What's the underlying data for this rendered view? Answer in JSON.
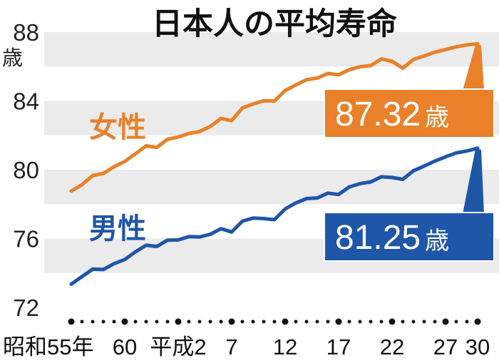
{
  "chart_data": {
    "type": "line",
    "title": "日本人の平均寿命",
    "y_unit": "歳",
    "ylim": [
      72,
      88
    ],
    "yticks": [
      72,
      76,
      80,
      84,
      88
    ],
    "x_range": [
      1980,
      2018
    ],
    "x_ticks": [
      {
        "year": 1980,
        "label": "昭和55年"
      },
      {
        "year": 1985,
        "label": "60"
      },
      {
        "year": 1990,
        "label": "平成2"
      },
      {
        "year": 1995,
        "label": "7"
      },
      {
        "year": 2000,
        "label": "12"
      },
      {
        "year": 2005,
        "label": "17"
      },
      {
        "year": 2010,
        "label": "22"
      },
      {
        "year": 2015,
        "label": "27"
      },
      {
        "year": 2018,
        "label": "30"
      }
    ],
    "grid_bands": true,
    "series": [
      {
        "name": "女性",
        "color": "#e8812a",
        "latest_label": "87.32",
        "unit": "歳",
        "points": [
          [
            1980,
            78.76
          ],
          [
            1981,
            79.13
          ],
          [
            1982,
            79.66
          ],
          [
            1983,
            79.78
          ],
          [
            1984,
            80.18
          ],
          [
            1985,
            80.48
          ],
          [
            1986,
            80.93
          ],
          [
            1987,
            81.39
          ],
          [
            1988,
            81.3
          ],
          [
            1989,
            81.77
          ],
          [
            1990,
            81.9
          ],
          [
            1991,
            82.11
          ],
          [
            1992,
            82.22
          ],
          [
            1993,
            82.51
          ],
          [
            1994,
            82.98
          ],
          [
            1995,
            82.85
          ],
          [
            1996,
            83.59
          ],
          [
            1997,
            83.82
          ],
          [
            1998,
            84.01
          ],
          [
            1999,
            83.99
          ],
          [
            2000,
            84.6
          ],
          [
            2001,
            84.93
          ],
          [
            2002,
            85.23
          ],
          [
            2003,
            85.33
          ],
          [
            2004,
            85.59
          ],
          [
            2005,
            85.52
          ],
          [
            2006,
            85.81
          ],
          [
            2007,
            85.99
          ],
          [
            2008,
            86.05
          ],
          [
            2009,
            86.44
          ],
          [
            2010,
            86.3
          ],
          [
            2011,
            85.9
          ],
          [
            2012,
            86.41
          ],
          [
            2013,
            86.61
          ],
          [
            2014,
            86.83
          ],
          [
            2015,
            86.99
          ],
          [
            2016,
            87.14
          ],
          [
            2017,
            87.26
          ],
          [
            2018,
            87.32
          ]
        ]
      },
      {
        "name": "男性",
        "color": "#1f56a8",
        "latest_label": "81.25",
        "unit": "歳",
        "points": [
          [
            1980,
            73.35
          ],
          [
            1981,
            73.79
          ],
          [
            1982,
            74.22
          ],
          [
            1983,
            74.2
          ],
          [
            1984,
            74.54
          ],
          [
            1985,
            74.78
          ],
          [
            1986,
            75.23
          ],
          [
            1987,
            75.61
          ],
          [
            1988,
            75.54
          ],
          [
            1989,
            75.91
          ],
          [
            1990,
            75.92
          ],
          [
            1991,
            76.11
          ],
          [
            1992,
            76.09
          ],
          [
            1993,
            76.25
          ],
          [
            1994,
            76.57
          ],
          [
            1995,
            76.38
          ],
          [
            1996,
            77.01
          ],
          [
            1997,
            77.19
          ],
          [
            1998,
            77.16
          ],
          [
            1999,
            77.1
          ],
          [
            2000,
            77.72
          ],
          [
            2001,
            78.07
          ],
          [
            2002,
            78.32
          ],
          [
            2003,
            78.36
          ],
          [
            2004,
            78.64
          ],
          [
            2005,
            78.56
          ],
          [
            2006,
            79.0
          ],
          [
            2007,
            79.19
          ],
          [
            2008,
            79.29
          ],
          [
            2009,
            79.59
          ],
          [
            2010,
            79.55
          ],
          [
            2011,
            79.44
          ],
          [
            2012,
            79.94
          ],
          [
            2013,
            80.21
          ],
          [
            2014,
            80.5
          ],
          [
            2015,
            80.75
          ],
          [
            2016,
            80.98
          ],
          [
            2017,
            81.09
          ],
          [
            2018,
            81.25
          ]
        ]
      }
    ]
  }
}
